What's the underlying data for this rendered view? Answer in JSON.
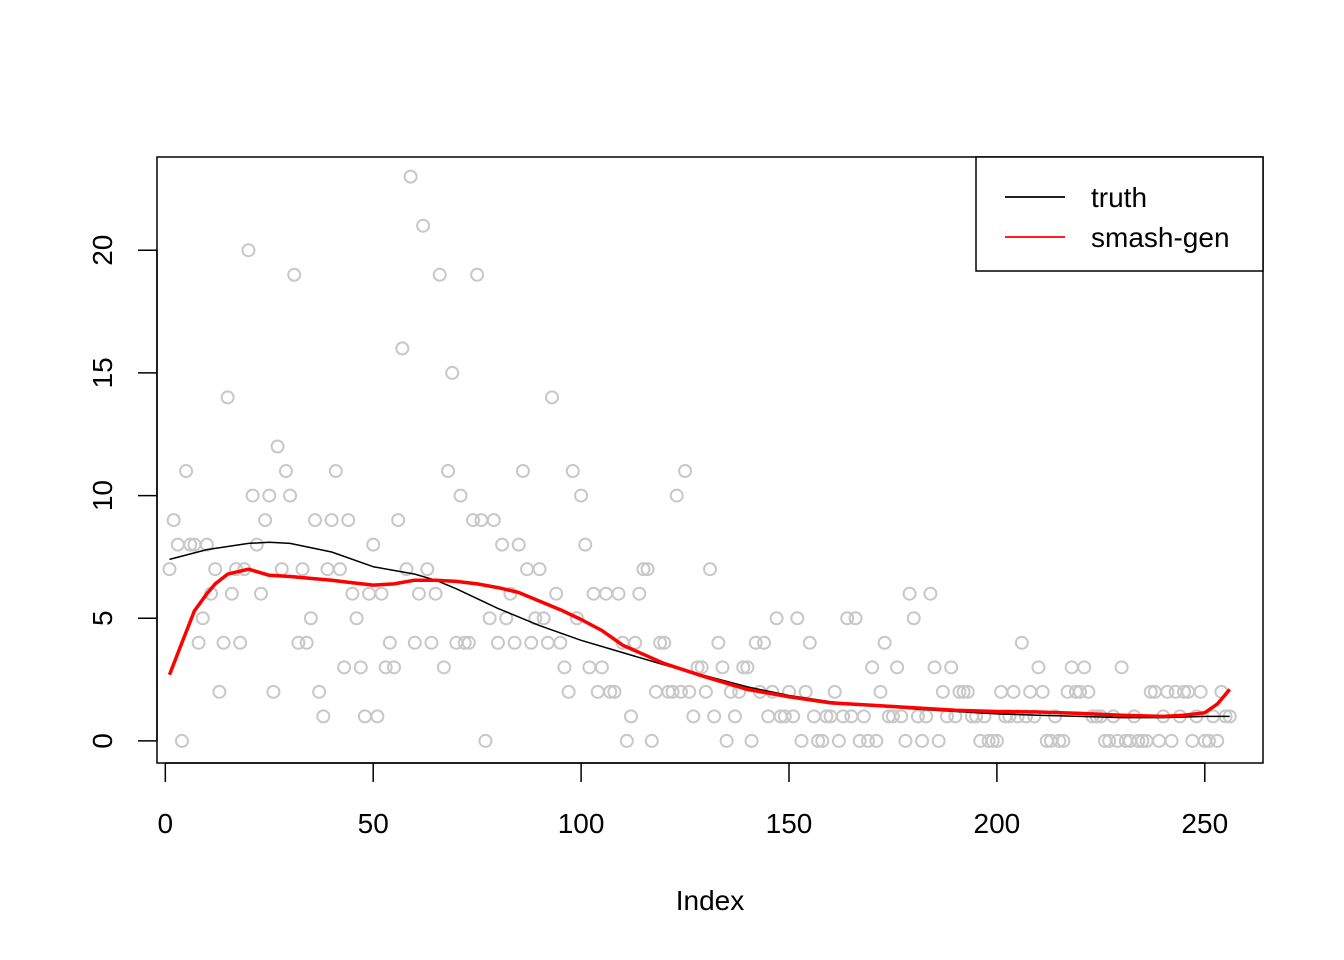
{
  "chart_data": {
    "type": "scatter",
    "title": "",
    "xlabel": "Index",
    "ylabel": "",
    "xlim": [
      0,
      256
    ],
    "ylim": [
      0,
      23
    ],
    "x_ticks": [
      0,
      50,
      100,
      150,
      200,
      250
    ],
    "y_ticks": [
      0,
      5,
      10,
      15,
      20
    ],
    "grid": false,
    "legend_position": "top-right",
    "points": {
      "name": "",
      "color": "#c8c8c8",
      "x": [
        1,
        2,
        3,
        4,
        5,
        6,
        7,
        8,
        9,
        10,
        11,
        12,
        13,
        14,
        15,
        16,
        17,
        18,
        19,
        20,
        21,
        22,
        23,
        24,
        25,
        26,
        27,
        28,
        29,
        30,
        31,
        32,
        33,
        34,
        35,
        36,
        37,
        38,
        39,
        40,
        41,
        42,
        43,
        44,
        45,
        46,
        47,
        48,
        49,
        50,
        51,
        52,
        53,
        54,
        55,
        56,
        57,
        58,
        59,
        60,
        61,
        62,
        63,
        64,
        65,
        66,
        67,
        68,
        69,
        70,
        71,
        72,
        73,
        74,
        75,
        76,
        77,
        78,
        79,
        80,
        81,
        82,
        83,
        84,
        85,
        86,
        87,
        88,
        89,
        90,
        91,
        92,
        93,
        94,
        95,
        96,
        97,
        98,
        99,
        100,
        101,
        102,
        103,
        104,
        105,
        106,
        107,
        108,
        109,
        110,
        111,
        112,
        113,
        114,
        115,
        116,
        117,
        118,
        119,
        120,
        121,
        122,
        123,
        124,
        125,
        126,
        127,
        128,
        129,
        130,
        131,
        132,
        133,
        134,
        135,
        136,
        137,
        138,
        139,
        140,
        141,
        142,
        143,
        144,
        145,
        146,
        147,
        148,
        149,
        150,
        151,
        152,
        153,
        154,
        155,
        156,
        157,
        158,
        159,
        160,
        161,
        162,
        163,
        164,
        165,
        166,
        167,
        168,
        169,
        170,
        171,
        172,
        173,
        174,
        175,
        176,
        177,
        178,
        179,
        180,
        181,
        182,
        183,
        184,
        185,
        186,
        187,
        188,
        189,
        190,
        191,
        192,
        193,
        194,
        195,
        196,
        197,
        198,
        199,
        200,
        201,
        202,
        203,
        204,
        205,
        206,
        207,
        208,
        209,
        210,
        211,
        212,
        213,
        214,
        215,
        216,
        217,
        218,
        219,
        220,
        221,
        222,
        223,
        224,
        225,
        226,
        227,
        228,
        229,
        230,
        231,
        232,
        233,
        234,
        235,
        236,
        237,
        238,
        239,
        240,
        241,
        242,
        243,
        244,
        245,
        246,
        247,
        248,
        249,
        250,
        251,
        252,
        253,
        254,
        255,
        256
      ],
      "y": [
        7,
        9,
        8,
        0,
        11,
        8,
        8,
        4,
        5,
        8,
        6,
        7,
        2,
        4,
        14,
        6,
        7,
        4,
        7,
        20,
        10,
        8,
        6,
        9,
        10,
        2,
        12,
        7,
        11,
        10,
        19,
        4,
        7,
        4,
        5,
        9,
        2,
        1,
        7,
        9,
        11,
        7,
        3,
        9,
        6,
        5,
        3,
        1,
        6,
        8,
        1,
        6,
        3,
        4,
        3,
        9,
        16,
        7,
        23,
        4,
        6,
        21,
        7,
        4,
        6,
        19,
        3,
        11,
        15,
        4,
        10,
        4,
        4,
        9,
        19,
        9,
        0,
        5,
        9,
        4,
        8,
        5,
        6,
        4,
        8,
        11,
        7,
        4,
        5,
        7,
        5,
        4,
        14,
        6,
        4,
        3,
        2,
        11,
        5,
        10,
        8,
        3,
        6,
        2,
        3,
        6,
        2,
        2,
        6,
        4,
        0,
        1,
        4,
        6,
        7,
        7,
        0,
        2,
        4,
        4,
        2,
        2,
        10,
        2,
        11,
        2,
        1,
        3,
        3,
        2,
        7,
        1,
        4,
        3,
        0,
        2,
        1,
        2,
        3,
        3,
        0,
        4,
        2,
        4,
        1,
        2,
        5,
        1,
        1,
        2,
        1,
        5,
        0,
        2,
        4,
        1,
        0,
        0,
        1,
        1,
        2,
        0,
        1,
        5,
        1,
        5,
        0,
        1,
        0,
        3,
        0,
        2,
        4,
        1,
        1,
        3,
        1,
        0,
        6,
        5,
        1,
        0,
        1,
        6,
        3,
        0,
        2,
        1,
        3,
        1,
        2,
        2,
        2,
        1,
        1,
        0,
        1,
        0,
        0,
        0,
        2,
        1,
        1,
        2,
        1,
        4,
        1,
        2,
        1,
        3,
        2,
        0,
        0,
        1,
        0,
        0,
        2,
        3,
        2,
        2,
        3,
        2,
        1,
        1,
        1,
        0,
        0,
        1,
        0,
        3,
        0,
        0,
        1,
        0,
        0,
        0,
        2,
        2,
        0,
        1,
        2,
        0,
        2,
        1,
        2,
        2,
        0,
        1,
        2,
        0,
        0,
        1,
        0,
        2,
        1,
        1
      ],
      "display_x": [
        1,
        2,
        3,
        4,
        5,
        6,
        7,
        8,
        9,
        10,
        11,
        12,
        13,
        14,
        15,
        16,
        17,
        18,
        19,
        20,
        21,
        22,
        23,
        24,
        25,
        26,
        27,
        28,
        29,
        30,
        31,
        32,
        33,
        34,
        35,
        36,
        37,
        38,
        39,
        40,
        41,
        42,
        43,
        44,
        45,
        46,
        47,
        48,
        49,
        50,
        51,
        52,
        53,
        54,
        55,
        56,
        57,
        58,
        59,
        60,
        61,
        62,
        63,
        64,
        65,
        66,
        67,
        68,
        69,
        70,
        71,
        72,
        73,
        74,
        75,
        76,
        77,
        78,
        79,
        80,
        81,
        82,
        83,
        84,
        85,
        86,
        87,
        88,
        89,
        90,
        91,
        92,
        93,
        94,
        95,
        96,
        97,
        98,
        99,
        100,
        101,
        102,
        103,
        104,
        105,
        106,
        107,
        108,
        109,
        110,
        111,
        112,
        113,
        114,
        115,
        116,
        117,
        118,
        119,
        120,
        121,
        122,
        123,
        124,
        125,
        126,
        127,
        128,
        129,
        130,
        131,
        132,
        133,
        134,
        135,
        136,
        137,
        138,
        139,
        140,
        141,
        142,
        143,
        144,
        145,
        146,
        147,
        148,
        149,
        150,
        151,
        152,
        153,
        154,
        155,
        156,
        157,
        158,
        159,
        160,
        161,
        162,
        163,
        164,
        165,
        166,
        167,
        168,
        169,
        170,
        171,
        172,
        173,
        174,
        175,
        176,
        177,
        178,
        179,
        180,
        181,
        182,
        183,
        184,
        185,
        186,
        187,
        188,
        189,
        190,
        191,
        192,
        193,
        194,
        195,
        196,
        197,
        198,
        199,
        200,
        201,
        202,
        203,
        204,
        205,
        206,
        207,
        208,
        209,
        210,
        211,
        212,
        213,
        214,
        215,
        216,
        217,
        218,
        219,
        220,
        221,
        222,
        223,
        224,
        225,
        226,
        227,
        228,
        229,
        230,
        231,
        232,
        233,
        234,
        235,
        236,
        237,
        238,
        239,
        240,
        241,
        242,
        243,
        244,
        245,
        246,
        247,
        248,
        249,
        250,
        251,
        252,
        253,
        254,
        255,
        256
      ]
    },
    "series": [
      {
        "name": "truth",
        "color": "#000000",
        "x": [
          1,
          10,
          20,
          25,
          30,
          40,
          50,
          60,
          65,
          70,
          80,
          90,
          100,
          110,
          120,
          130,
          140,
          150,
          160,
          170,
          180,
          190,
          200,
          210,
          220,
          230,
          240,
          250,
          256
        ],
        "y": [
          7.4,
          7.8,
          8.05,
          8.1,
          8.05,
          7.7,
          7.1,
          6.8,
          6.55,
          6.2,
          5.4,
          4.7,
          4.1,
          3.6,
          3.1,
          2.65,
          2.2,
          1.85,
          1.6,
          1.45,
          1.3,
          1.2,
          1.1,
          1.05,
          1.0,
          0.95,
          0.95,
          1.0,
          1.0
        ]
      },
      {
        "name": "smash-gen",
        "color": "#ff0000",
        "x": [
          1,
          4,
          7,
          10,
          12,
          15,
          20,
          25,
          30,
          40,
          45,
          50,
          55,
          60,
          65,
          70,
          75,
          80,
          85,
          90,
          95,
          100,
          105,
          110,
          120,
          130,
          140,
          150,
          160,
          170,
          180,
          190,
          200,
          210,
          220,
          230,
          240,
          245,
          250,
          253,
          256
        ],
        "y": [
          2.7,
          4.0,
          5.3,
          6.0,
          6.4,
          6.8,
          7.0,
          6.75,
          6.7,
          6.55,
          6.45,
          6.35,
          6.4,
          6.55,
          6.55,
          6.5,
          6.4,
          6.25,
          6.05,
          5.7,
          5.35,
          4.95,
          4.5,
          3.9,
          3.15,
          2.6,
          2.1,
          1.8,
          1.55,
          1.45,
          1.35,
          1.25,
          1.2,
          1.18,
          1.12,
          1.05,
          1.0,
          1.05,
          1.15,
          1.5,
          2.1
        ]
      }
    ]
  }
}
